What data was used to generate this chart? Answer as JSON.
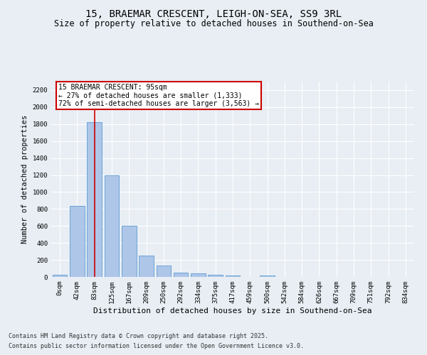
{
  "title_line1": "15, BRAEMAR CRESCENT, LEIGH-ON-SEA, SS9 3RL",
  "title_line2": "Size of property relative to detached houses in Southend-on-Sea",
  "xlabel": "Distribution of detached houses by size in Southend-on-Sea",
  "ylabel": "Number of detached properties",
  "bar_labels": [
    "0sqm",
    "42sqm",
    "83sqm",
    "125sqm",
    "167sqm",
    "209sqm",
    "250sqm",
    "292sqm",
    "334sqm",
    "375sqm",
    "417sqm",
    "459sqm",
    "500sqm",
    "542sqm",
    "584sqm",
    "626sqm",
    "667sqm",
    "709sqm",
    "751sqm",
    "792sqm",
    "834sqm"
  ],
  "bar_values": [
    25,
    840,
    1820,
    1200,
    600,
    255,
    135,
    48,
    40,
    28,
    14,
    0,
    20,
    0,
    0,
    0,
    0,
    0,
    0,
    0,
    0
  ],
  "bar_color": "#aec6e8",
  "bar_edge_color": "#5b9bd5",
  "background_color": "#e8eef4",
  "grid_color": "#ffffff",
  "vline_x": 2.0,
  "vline_color": "#cc0000",
  "annotation_title": "15 BRAEMAR CRESCENT: 95sqm",
  "annotation_line2": "← 27% of detached houses are smaller (1,333)",
  "annotation_line3": "72% of semi-detached houses are larger (3,563) →",
  "annotation_box_color": "#cc0000",
  "ylim": [
    0,
    2300
  ],
  "yticks": [
    0,
    200,
    400,
    600,
    800,
    1000,
    1200,
    1400,
    1600,
    1800,
    2000,
    2200
  ],
  "footnote_line1": "Contains HM Land Registry data © Crown copyright and database right 2025.",
  "footnote_line2": "Contains public sector information licensed under the Open Government Licence v3.0.",
  "title_fontsize": 10,
  "subtitle_fontsize": 8.5,
  "annotation_fontsize": 7,
  "tick_fontsize": 6.5,
  "ylabel_fontsize": 7.5,
  "xlabel_fontsize": 8,
  "footnote_fontsize": 6
}
